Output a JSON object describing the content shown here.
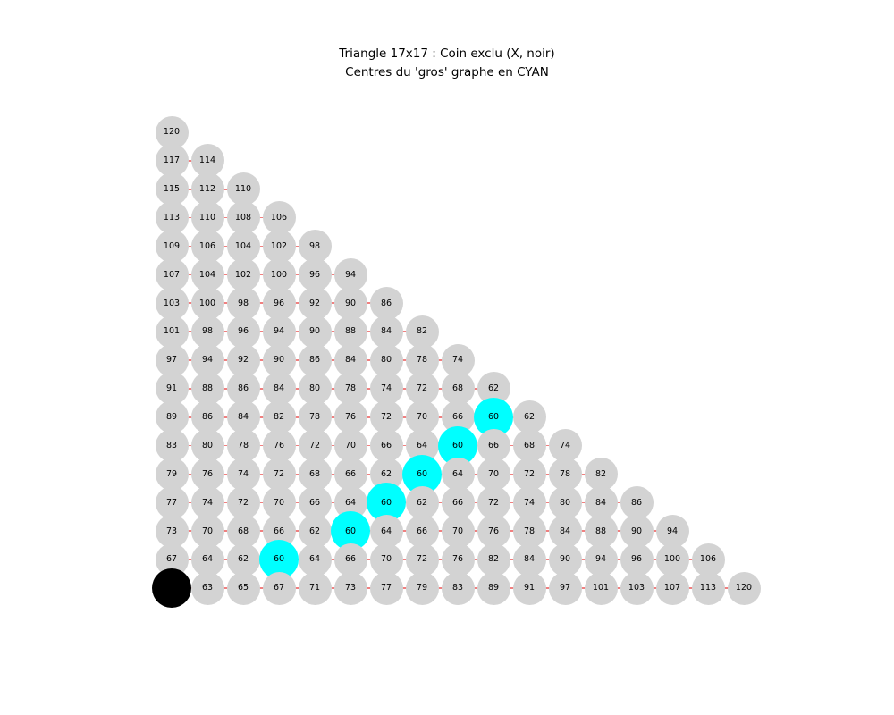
{
  "chart_data": {
    "type": "scatter",
    "title_line1": "Triangle 17x17 : Coin exclu (X, noir)",
    "title_line2": "Centres du 'gros' graphe en CYAN",
    "grid": false,
    "legend": "none",
    "rows": [
      [
        120
      ],
      [
        117,
        114
      ],
      [
        115,
        112,
        110
      ],
      [
        113,
        110,
        108,
        106
      ],
      [
        109,
        106,
        104,
        102,
        98
      ],
      [
        107,
        104,
        102,
        100,
        96,
        94
      ],
      [
        103,
        100,
        98,
        96,
        92,
        90,
        86
      ],
      [
        101,
        98,
        96,
        94,
        90,
        88,
        84,
        82
      ],
      [
        97,
        94,
        92,
        90,
        86,
        84,
        80,
        78,
        74
      ],
      [
        91,
        88,
        86,
        84,
        80,
        78,
        74,
        72,
        68,
        62
      ],
      [
        89,
        86,
        84,
        82,
        78,
        76,
        72,
        70,
        66,
        60,
        62
      ],
      [
        83,
        80,
        78,
        76,
        72,
        70,
        66,
        64,
        60,
        66,
        68,
        74
      ],
      [
        79,
        76,
        74,
        72,
        68,
        66,
        62,
        60,
        64,
        70,
        72,
        78,
        82
      ],
      [
        77,
        74,
        72,
        70,
        66,
        64,
        60,
        62,
        66,
        72,
        74,
        80,
        84,
        86
      ],
      [
        73,
        70,
        68,
        66,
        62,
        60,
        64,
        66,
        70,
        76,
        78,
        84,
        88,
        90,
        94
      ],
      [
        67,
        64,
        62,
        60,
        64,
        66,
        70,
        72,
        76,
        82,
        84,
        90,
        94,
        96,
        100,
        106
      ],
      [
        null,
        63,
        65,
        67,
        71,
        73,
        77,
        79,
        83,
        89,
        91,
        97,
        101,
        103,
        107,
        113,
        120
      ]
    ],
    "cyan_center_nodes": [
      [
        10,
        9
      ],
      [
        11,
        8
      ],
      [
        12,
        7
      ],
      [
        13,
        6
      ],
      [
        14,
        5
      ],
      [
        15,
        3
      ]
    ],
    "excluded_corner_node": [
      16,
      0
    ],
    "colors": {
      "node_default": "#d3d3d3",
      "node_center": "#00ffff",
      "node_excluded": "#000000",
      "edge": "#f08080",
      "label_text": "#000000",
      "background": "#ffffff"
    }
  }
}
